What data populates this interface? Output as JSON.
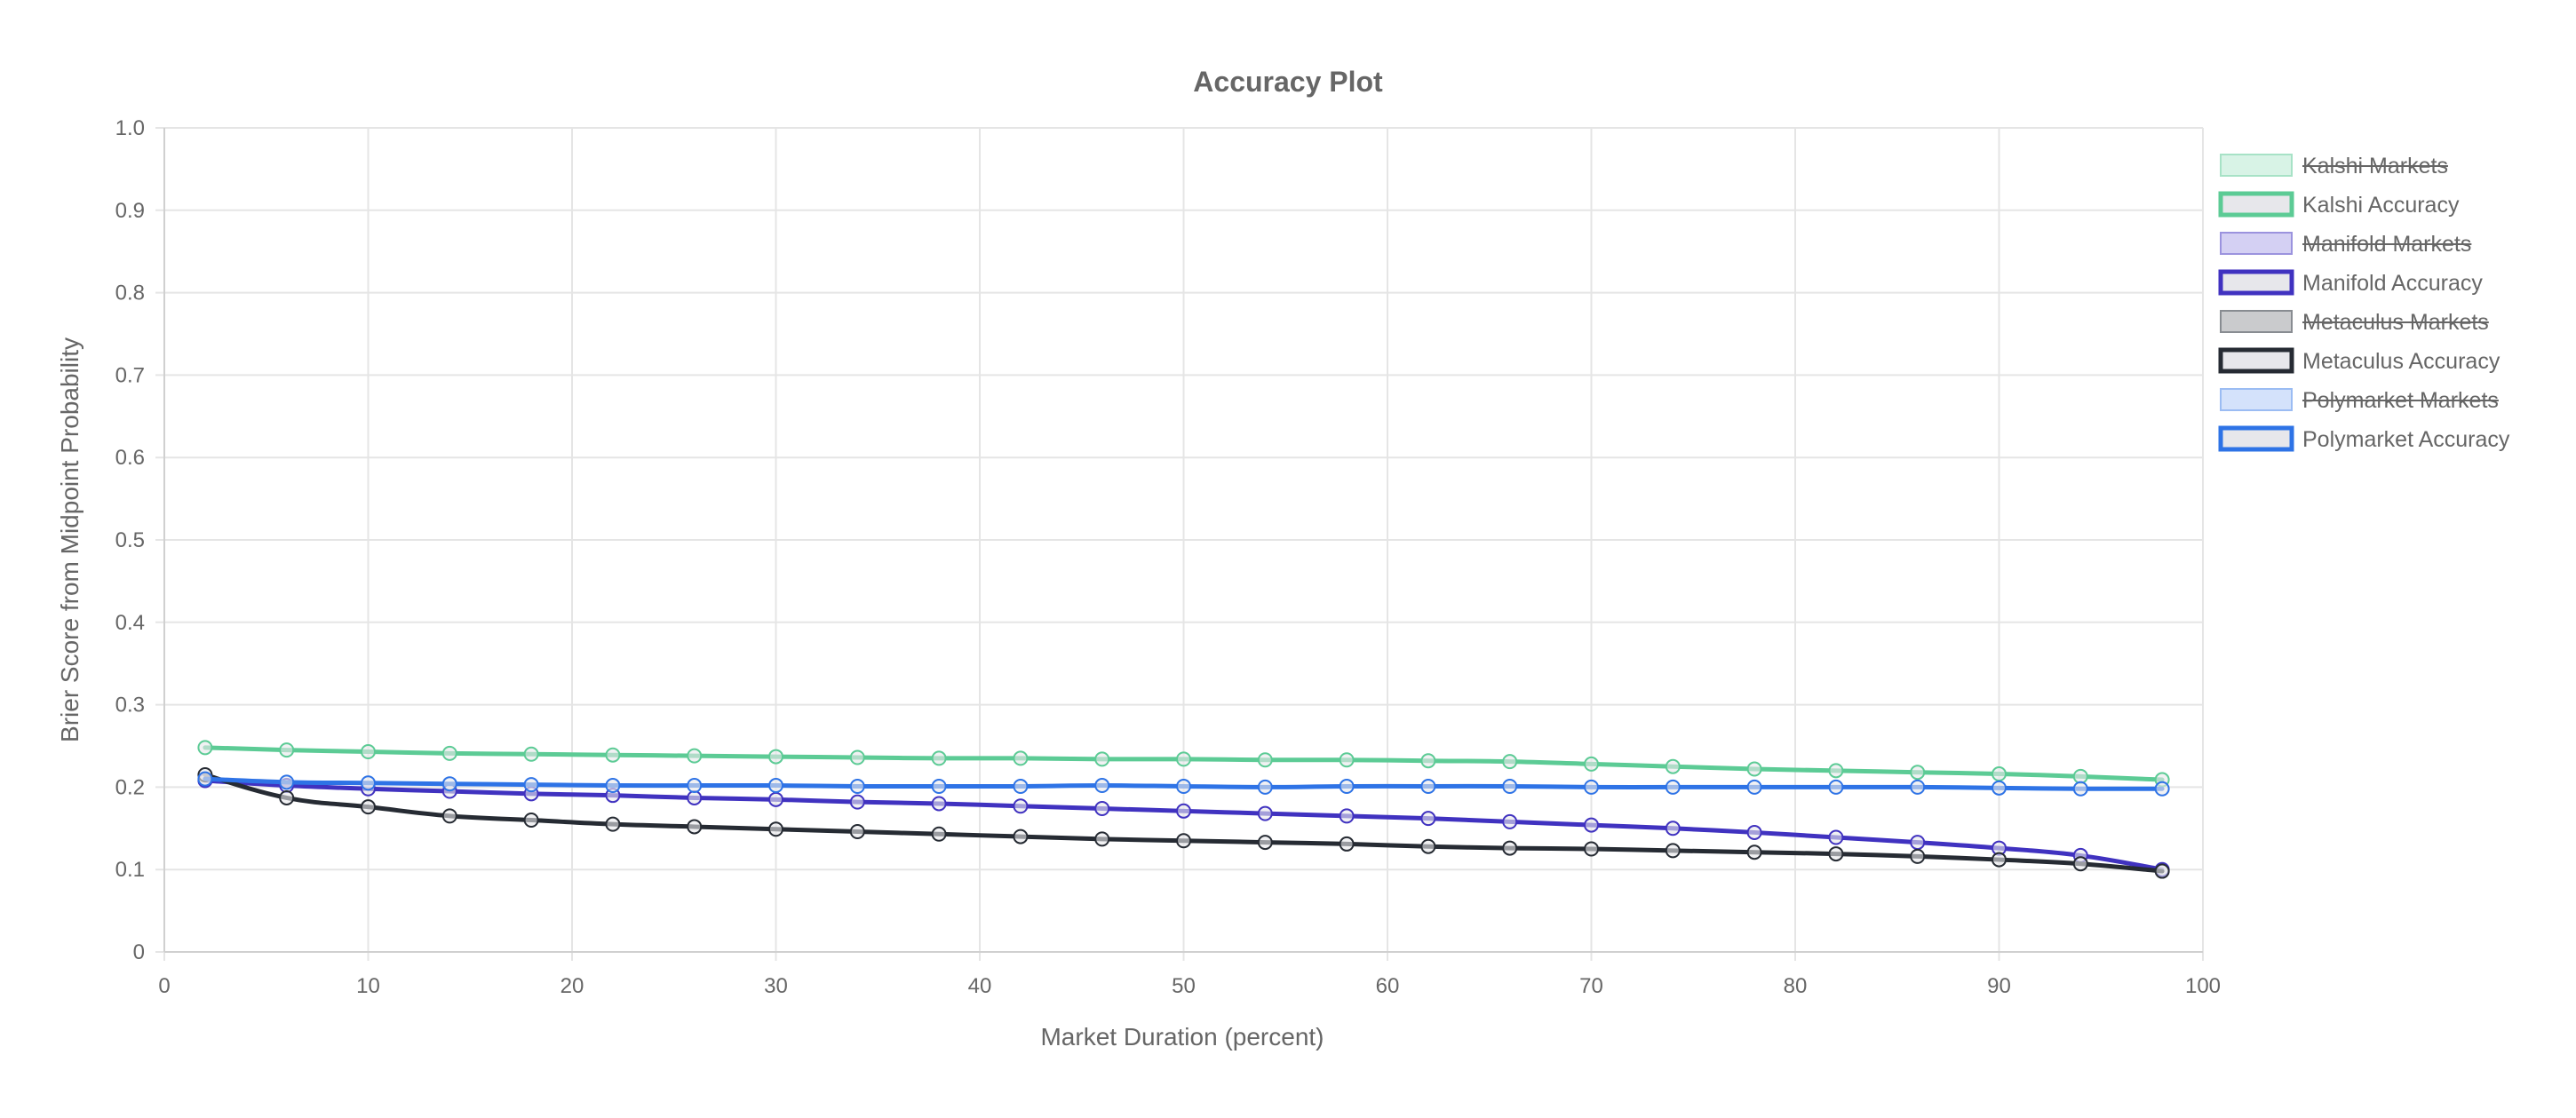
{
  "chart_data": {
    "type": "line",
    "title": "Accuracy Plot",
    "xlabel": "Market Duration (percent)",
    "ylabel": "Brier Score from Midpoint Probability",
    "xlim": [
      0,
      100
    ],
    "ylim": [
      0,
      1.0
    ],
    "x_ticks": [
      "0",
      "10",
      "20",
      "30",
      "40",
      "50",
      "60",
      "70",
      "80",
      "90",
      "100"
    ],
    "y_ticks": [
      "0",
      "0.1",
      "0.2",
      "0.3",
      "0.4",
      "0.5",
      "0.6",
      "0.7",
      "0.8",
      "0.9",
      "1.0"
    ],
    "grid": true,
    "legend_position": "right",
    "x": [
      2,
      6,
      10,
      14,
      18,
      22,
      26,
      30,
      34,
      38,
      42,
      46,
      50,
      54,
      58,
      62,
      66,
      70,
      74,
      78,
      82,
      86,
      90,
      94,
      98
    ],
    "legend": [
      {
        "label": "Kalshi Markets",
        "hidden": true,
        "border": "#a7e2c6",
        "fill": "#d8f3e6"
      },
      {
        "label": "Kalshi Accuracy",
        "hidden": false,
        "border": "#5ccb95",
        "fill": "#e7e7eb"
      },
      {
        "label": "Manifold Markets",
        "hidden": true,
        "border": "#9b93de",
        "fill": "#d4d0f3"
      },
      {
        "label": "Manifold Accuracy",
        "hidden": false,
        "border": "#4032c0",
        "fill": "#e7e7eb"
      },
      {
        "label": "Metaculus Markets",
        "hidden": true,
        "border": "#888c91",
        "fill": "#cacbcd"
      },
      {
        "label": "Metaculus Accuracy",
        "hidden": false,
        "border": "#262b33",
        "fill": "#e7e7eb"
      },
      {
        "label": "Polymarket Markets",
        "hidden": true,
        "border": "#9bbcf3",
        "fill": "#d4e2fb"
      },
      {
        "label": "Polymarket Accuracy",
        "hidden": false,
        "border": "#2e73e6",
        "fill": "#e7e7eb"
      }
    ],
    "series": [
      {
        "name": "Kalshi Accuracy",
        "color": "#5ccb95",
        "values": [
          0.248,
          0.245,
          0.243,
          0.241,
          0.24,
          0.239,
          0.238,
          0.237,
          0.236,
          0.235,
          0.235,
          0.234,
          0.234,
          0.233,
          0.233,
          0.232,
          0.231,
          0.228,
          0.225,
          0.222,
          0.22,
          0.218,
          0.216,
          0.213,
          0.209
        ]
      },
      {
        "name": "Manifold Accuracy",
        "color": "#4032c0",
        "values": [
          0.208,
          0.202,
          0.198,
          0.195,
          0.192,
          0.19,
          0.187,
          0.185,
          0.182,
          0.18,
          0.177,
          0.174,
          0.171,
          0.168,
          0.165,
          0.162,
          0.158,
          0.154,
          0.15,
          0.145,
          0.139,
          0.133,
          0.126,
          0.117,
          0.1
        ]
      },
      {
        "name": "Metaculus Accuracy",
        "color": "#262b33",
        "values": [
          0.215,
          0.187,
          0.176,
          0.165,
          0.16,
          0.155,
          0.152,
          0.149,
          0.146,
          0.143,
          0.14,
          0.137,
          0.135,
          0.133,
          0.131,
          0.128,
          0.126,
          0.125,
          0.123,
          0.121,
          0.119,
          0.116,
          0.112,
          0.107,
          0.098
        ]
      },
      {
        "name": "Polymarket Accuracy",
        "color": "#2e73e6",
        "values": [
          0.21,
          0.206,
          0.205,
          0.204,
          0.203,
          0.202,
          0.202,
          0.202,
          0.201,
          0.201,
          0.201,
          0.202,
          0.201,
          0.2,
          0.201,
          0.201,
          0.201,
          0.2,
          0.2,
          0.2,
          0.2,
          0.2,
          0.199,
          0.198,
          0.198
        ]
      }
    ]
  }
}
